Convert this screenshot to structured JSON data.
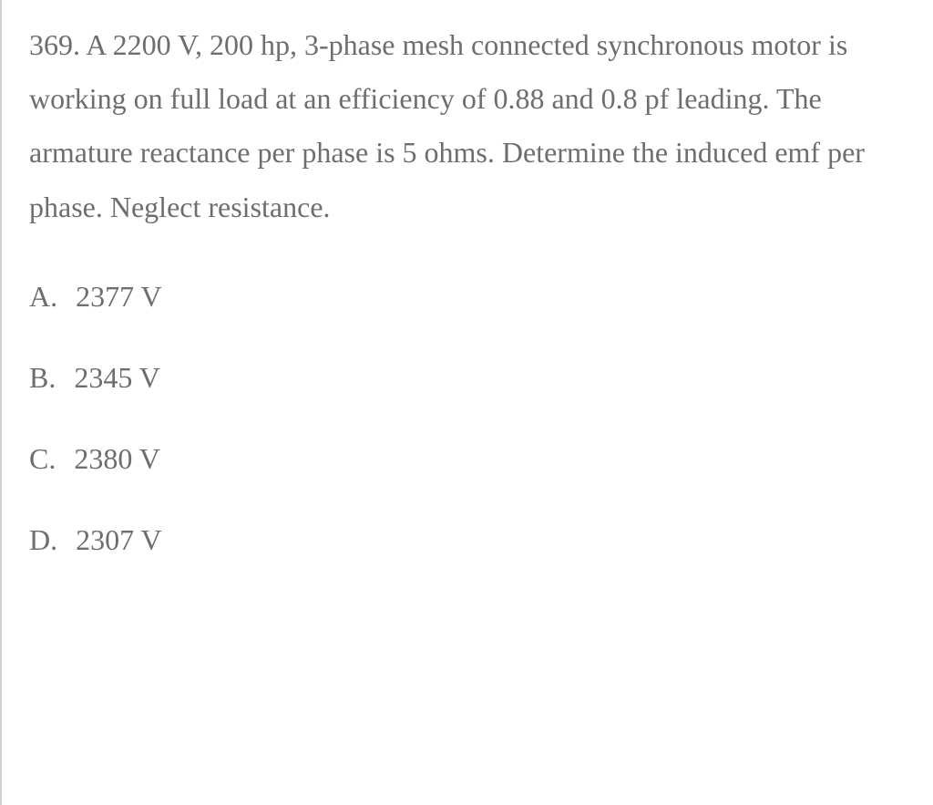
{
  "question": {
    "number": "369.",
    "text": "A 2200 V, 200 hp, 3-phase mesh connected synchronous motor is working on full load at an efficiency of 0.88 and 0.8 pf leading. The armature reactance per phase is 5 ohms. Determine the induced emf per phase. Neglect resistance."
  },
  "options": [
    {
      "label": "A.",
      "value": "2377 V"
    },
    {
      "label": "B.",
      "value": "2345 V"
    },
    {
      "label": "C.",
      "value": "2380 V"
    },
    {
      "label": "D.",
      "value": "2307 V"
    }
  ],
  "styling": {
    "text_color": "#6e6e6e",
    "background_color": "#ffffff",
    "border_color": "#d0d0d0",
    "font_size_pt": 24,
    "line_height": 1.85,
    "font_family": "Georgia, serif"
  }
}
